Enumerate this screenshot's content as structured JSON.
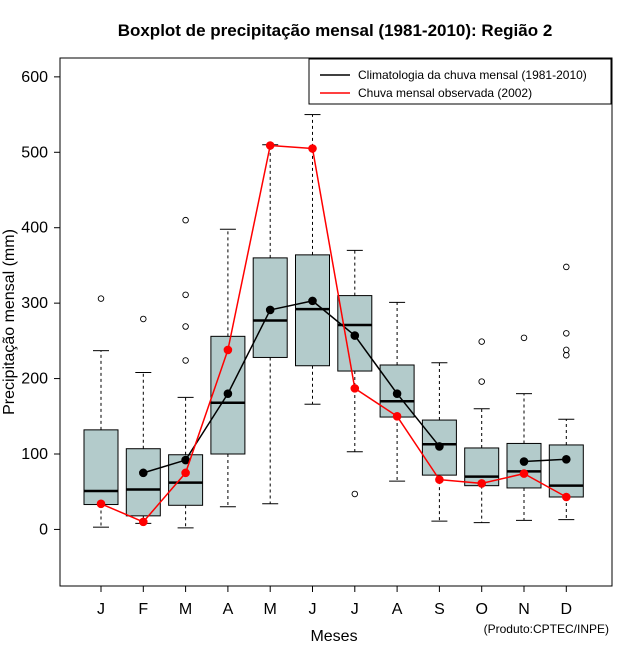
{
  "chart_data": {
    "type": "boxplot",
    "title": "Boxplot de precipitação mensal (1981-2010): Região 2",
    "xlabel": "Meses",
    "ylabel": "Precipitação mensal (mm)",
    "credit": "(Produto:CPTEC/INPE)",
    "ylim": [
      -75,
      625
    ],
    "yticks": [
      0,
      100,
      200,
      300,
      400,
      500,
      600
    ],
    "categories": [
      "J",
      "F",
      "M",
      "A",
      "M",
      "J",
      "J",
      "A",
      "S",
      "O",
      "N",
      "D"
    ],
    "boxes": [
      {
        "whisker_low": 3,
        "q1": 33,
        "median": 51,
        "q3": 132,
        "whisker_high": 237,
        "outliers": [
          306
        ]
      },
      {
        "whisker_low": 8,
        "q1": 18,
        "median": 53,
        "q3": 107,
        "whisker_high": 208,
        "outliers": [
          279
        ]
      },
      {
        "whisker_low": 2,
        "q1": 32,
        "median": 62,
        "q3": 99,
        "whisker_high": 175,
        "outliers": [
          224,
          269,
          311,
          410
        ]
      },
      {
        "whisker_low": 30,
        "q1": 100,
        "median": 168,
        "q3": 256,
        "whisker_high": 398,
        "outliers": []
      },
      {
        "whisker_low": 34,
        "q1": 228,
        "median": 277,
        "q3": 360,
        "whisker_high": 510,
        "outliers": []
      },
      {
        "whisker_low": 166,
        "q1": 217,
        "median": 292,
        "q3": 364,
        "whisker_high": 550,
        "outliers": []
      },
      {
        "whisker_low": 103,
        "q1": 210,
        "median": 271,
        "q3": 310,
        "whisker_high": 370,
        "outliers": [
          47
        ]
      },
      {
        "whisker_low": 64,
        "q1": 149,
        "median": 170,
        "q3": 218,
        "whisker_high": 301,
        "outliers": []
      },
      {
        "whisker_low": 11,
        "q1": 72,
        "median": 113,
        "q3": 145,
        "whisker_high": 221,
        "outliers": []
      },
      {
        "whisker_low": 9,
        "q1": 58,
        "median": 70,
        "q3": 108,
        "whisker_high": 160,
        "outliers": [
          196,
          249
        ]
      },
      {
        "whisker_low": 12,
        "q1": 55,
        "median": 77,
        "q3": 114,
        "whisker_high": 180,
        "outliers": [
          254
        ]
      },
      {
        "whisker_low": 13,
        "q1": 43,
        "median": 58,
        "q3": 112,
        "whisker_high": 146,
        "outliers": [
          231,
          238,
          260,
          348
        ]
      }
    ],
    "series": [
      {
        "name": "Climatologia da chuva mensal (1981-2010)",
        "color": "#000000",
        "values": [
          null,
          75,
          92,
          180,
          291,
          303,
          257,
          180,
          110,
          null,
          90,
          93
        ]
      },
      {
        "name": "Chuva mensal observada (2002)",
        "color": "#ff0000",
        "values": [
          34,
          10,
          75,
          238,
          509,
          505,
          187,
          150,
          66,
          61,
          74,
          43
        ]
      }
    ],
    "box_fill": "#b3cbcb",
    "legend_position": "top-right"
  }
}
